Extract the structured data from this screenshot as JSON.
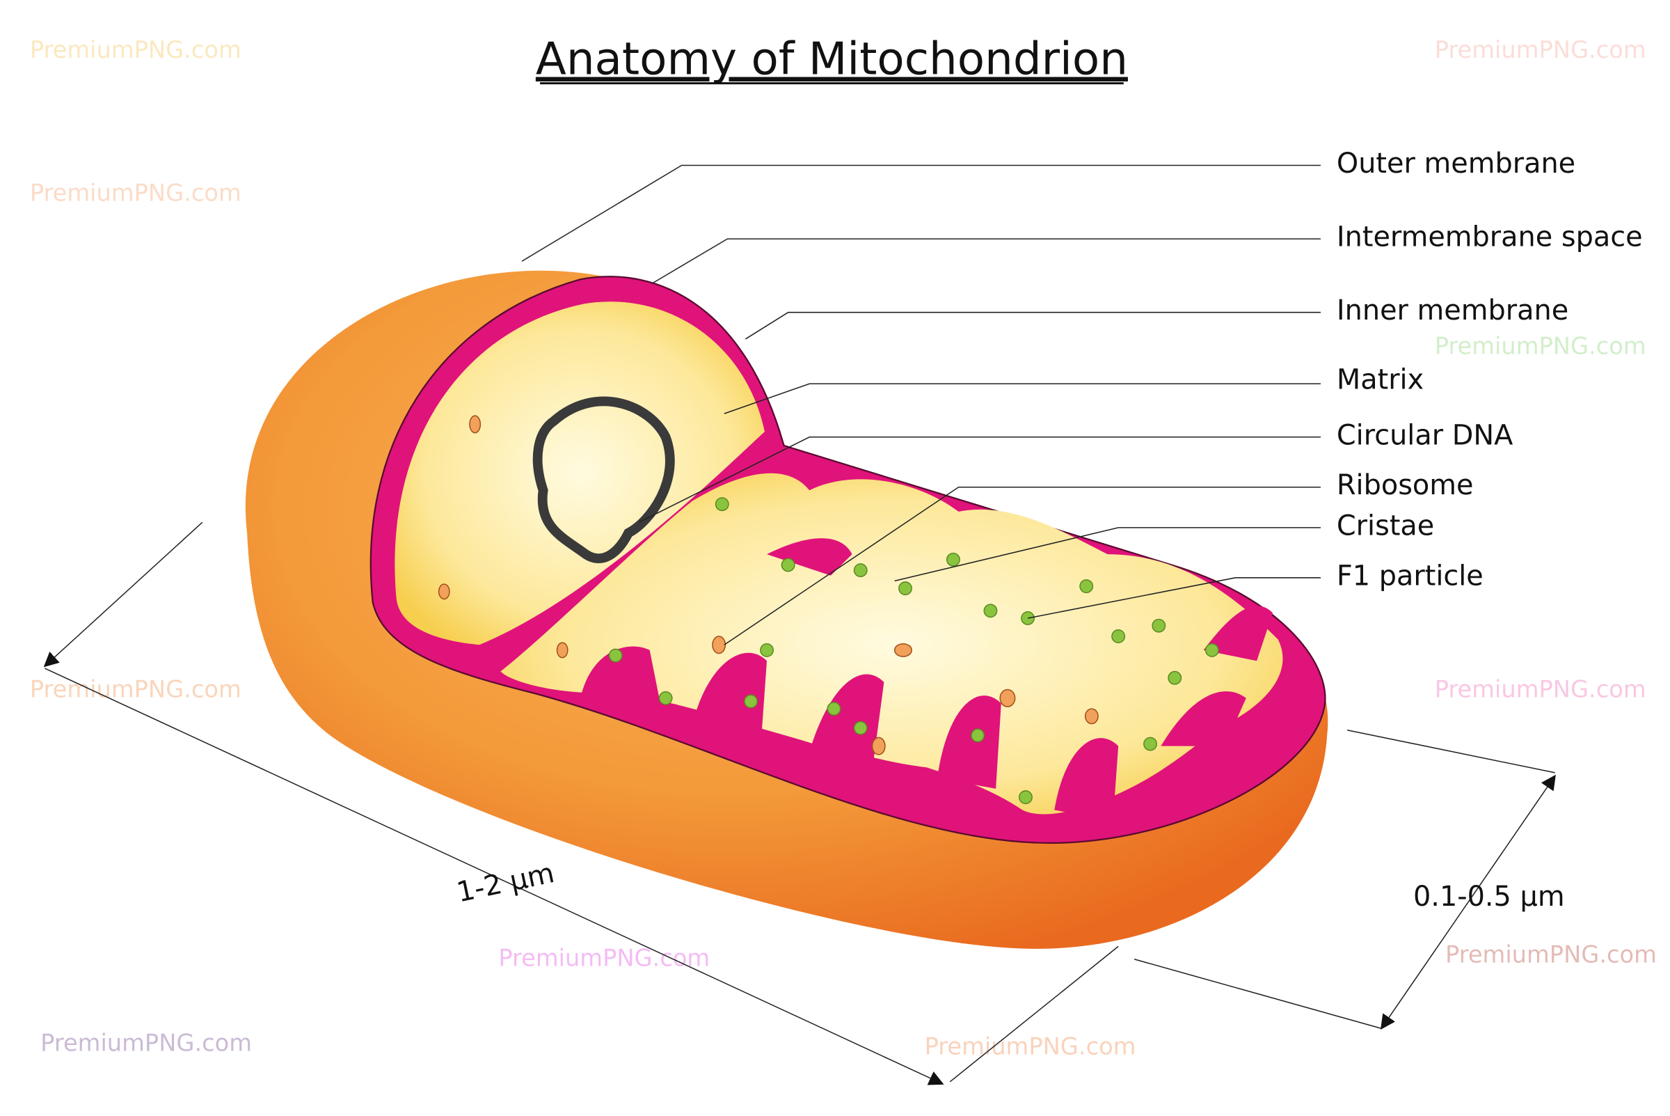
{
  "title": "Anatomy of Mitochondrion",
  "labels": [
    "Outer membrane",
    "Intermembrane space",
    "Inner membrane",
    "Matrix",
    "Circular DNA",
    "Ribosome",
    "Cristae",
    "F1 particle"
  ],
  "dimensions": {
    "length": "1-2 µm",
    "width": "0.1-0.5 µm"
  },
  "watermark": "PremiumPNG.com"
}
